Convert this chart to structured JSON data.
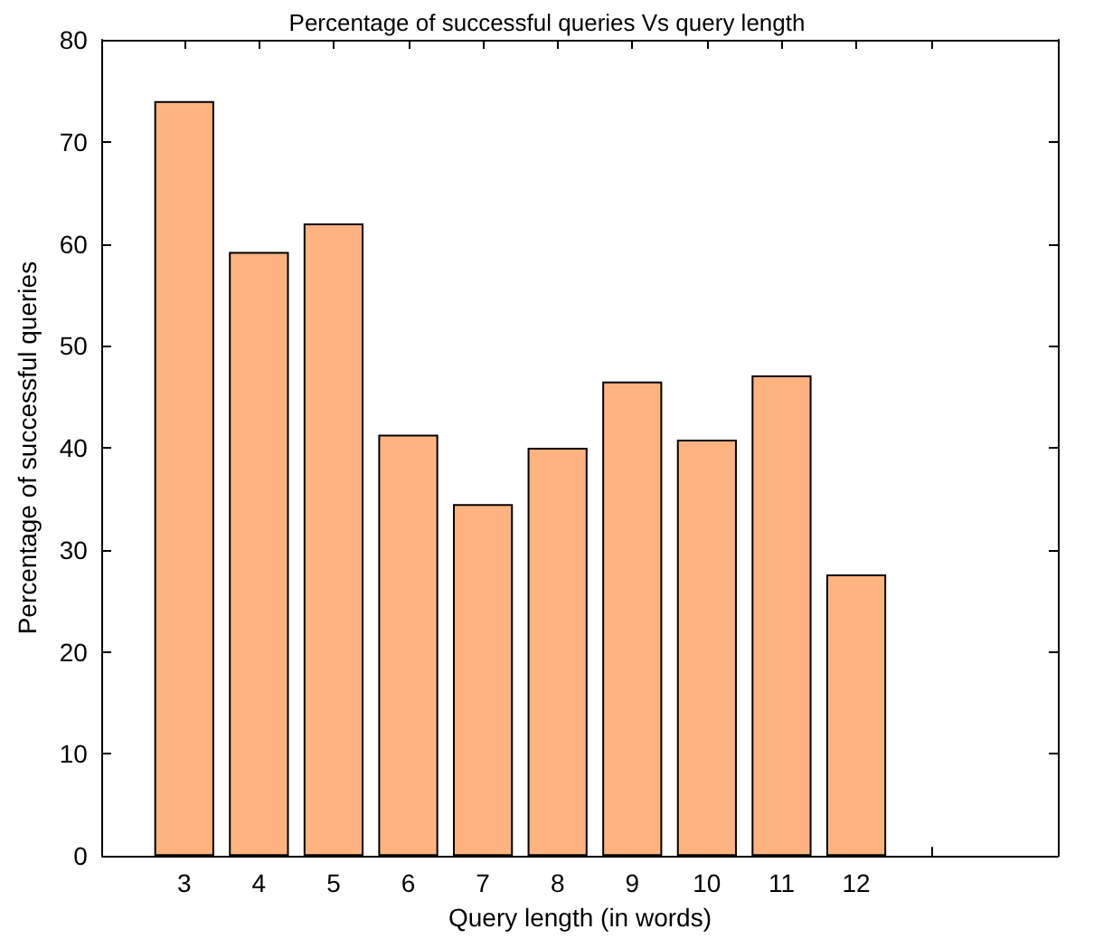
{
  "chart_data": {
    "type": "bar",
    "title": "Percentage of successful queries Vs query length",
    "xlabel": "Query length (in words)",
    "ylabel": "Percentage of successful queries",
    "x": [
      3,
      4,
      5,
      6,
      7,
      8,
      9,
      10,
      11,
      12
    ],
    "values": [
      74,
      59.2,
      62,
      41.3,
      34.5,
      40,
      46.5,
      40.8,
      47.1,
      27.6
    ],
    "color": "#ffb380",
    "xlim": [
      1.9,
      14.7
    ],
    "xticks": [
      3,
      4,
      5,
      6,
      7,
      8,
      9,
      10,
      11,
      12,
      {
        "value": 13,
        "label": null
      }
    ],
    "ylim": [
      0,
      80
    ],
    "yticks": [
      0,
      10,
      20,
      30,
      40,
      50,
      60,
      70,
      80
    ],
    "grid": false
  }
}
